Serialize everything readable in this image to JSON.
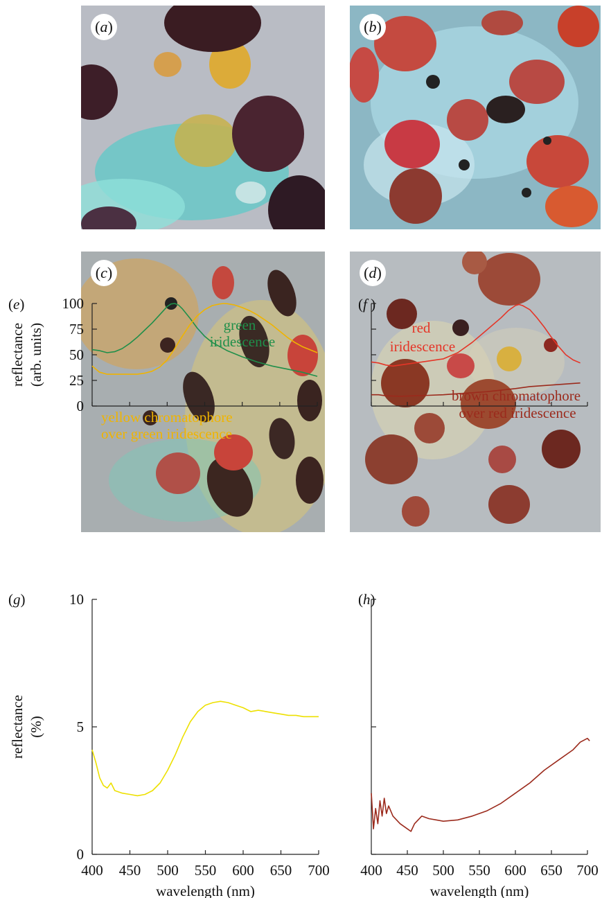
{
  "photos": [
    {
      "id": "a",
      "label": "a",
      "bg": "#b9bcc4",
      "accent": "#3ec6c2"
    },
    {
      "id": "b",
      "label": "b",
      "bg": "#8cb7c4",
      "accent": "#c44a40"
    },
    {
      "id": "c",
      "label": "c",
      "bg": "#a8aeb0",
      "accent": "#e0b040"
    },
    {
      "id": "d",
      "label": "d",
      "bg": "#b7bcc0",
      "accent": "#9c4a38"
    }
  ],
  "colors": {
    "green": "#1f8f4a",
    "yellow_orange": "#f0b400",
    "yellow": "#ede000",
    "red": "#e53527",
    "brown": "#9b2a1c"
  },
  "chart_data": [
    {
      "panel": "e",
      "type": "line",
      "ylabel": [
        "reflectance",
        "(arb. units)"
      ],
      "xlim": [
        400,
        700
      ],
      "ylim": [
        0,
        100
      ],
      "yticks": [
        0,
        25,
        50,
        75,
        100
      ],
      "xticks_labeled": false,
      "series": [
        {
          "color": "#1f8f4a",
          "points": [
            [
              400,
              55
            ],
            [
              410,
              54
            ],
            [
              420,
              52
            ],
            [
              430,
              53
            ],
            [
              440,
              56
            ],
            [
              450,
              61
            ],
            [
              460,
              67
            ],
            [
              470,
              74
            ],
            [
              480,
              81
            ],
            [
              490,
              89
            ],
            [
              500,
              97
            ],
            [
              505,
              99.5
            ],
            [
              510,
              100
            ],
            [
              515,
              98.5
            ],
            [
              520,
              95
            ],
            [
              530,
              86
            ],
            [
              540,
              76
            ],
            [
              550,
              68
            ],
            [
              560,
              62
            ],
            [
              570,
              58
            ],
            [
              580,
              54
            ],
            [
              590,
              51
            ],
            [
              600,
              48
            ],
            [
              620,
              43
            ],
            [
              640,
              39
            ],
            [
              660,
              36
            ],
            [
              680,
              33
            ],
            [
              700,
              29
            ]
          ]
        },
        {
          "color": "#f0b400",
          "points": [
            [
              400,
              39
            ],
            [
              405,
              36
            ],
            [
              410,
              33
            ],
            [
              420,
              31
            ],
            [
              440,
              31
            ],
            [
              460,
              31
            ],
            [
              470,
              32
            ],
            [
              480,
              34
            ],
            [
              490,
              38
            ],
            [
              500,
              45
            ],
            [
              510,
              56
            ],
            [
              520,
              68
            ],
            [
              530,
              79
            ],
            [
              540,
              88
            ],
            [
              550,
              94
            ],
            [
              560,
              98
            ],
            [
              570,
              99.5
            ],
            [
              575,
              100
            ],
            [
              580,
              99.8
            ],
            [
              590,
              98.5
            ],
            [
              600,
              96
            ],
            [
              610,
              93
            ],
            [
              620,
              89
            ],
            [
              630,
              84
            ],
            [
              640,
              79
            ],
            [
              650,
              73
            ],
            [
              660,
              67
            ],
            [
              670,
              62
            ],
            [
              680,
              58
            ],
            [
              690,
              55
            ],
            [
              700,
              52
            ]
          ]
        }
      ],
      "annotations": [
        {
          "text": "green",
          "color": "#1f8f4a"
        },
        {
          "text": "iridescence",
          "color": "#1f8f4a"
        },
        {
          "text": "yellow chromatophore",
          "color": "#f0b400"
        },
        {
          "text": "over green iridescence",
          "color": "#f0b400"
        }
      ]
    },
    {
      "panel": "f",
      "type": "line",
      "xlim": [
        400,
        700
      ],
      "ylim": [
        0,
        100
      ],
      "yticks": [
        0,
        25,
        50,
        75,
        100
      ],
      "yticks_labeled": false,
      "xticks_labeled": false,
      "series": [
        {
          "color": "#e53527",
          "points": [
            [
              400,
              43
            ],
            [
              410,
              42
            ],
            [
              420,
              40
            ],
            [
              430,
              39
            ],
            [
              440,
              40
            ],
            [
              450,
              41
            ],
            [
              460,
              42
            ],
            [
              470,
              43
            ],
            [
              480,
              44
            ],
            [
              500,
              46
            ],
            [
              520,
              52
            ],
            [
              540,
              62
            ],
            [
              560,
              74
            ],
            [
              580,
              86
            ],
            [
              590,
              93
            ],
            [
              600,
              98
            ],
            [
              605,
              99
            ],
            [
              610,
              98
            ],
            [
              620,
              94
            ],
            [
              630,
              86
            ],
            [
              640,
              77
            ],
            [
              650,
              67
            ],
            [
              660,
              58
            ],
            [
              670,
              50
            ],
            [
              680,
              45
            ],
            [
              690,
              42
            ]
          ]
        },
        {
          "color": "#9b2a1c",
          "points": [
            [
              400,
              11
            ],
            [
              410,
              11
            ],
            [
              420,
              10
            ],
            [
              440,
              9.5
            ],
            [
              460,
              10
            ],
            [
              480,
              10.5
            ],
            [
              500,
              11
            ],
            [
              520,
              12
            ],
            [
              540,
              13
            ],
            [
              560,
              14
            ],
            [
              580,
              15.5
            ],
            [
              600,
              17
            ],
            [
              620,
              19
            ],
            [
              640,
              20
            ],
            [
              660,
              21
            ],
            [
              680,
              22
            ],
            [
              690,
              22.5
            ]
          ]
        }
      ],
      "annotations": [
        {
          "text": "red",
          "color": "#e53527"
        },
        {
          "text": "iridescence",
          "color": "#e53527"
        },
        {
          "text": "brown chromatophore",
          "color": "#9b2a1c"
        },
        {
          "text": "over red iridescence",
          "color": "#9b2a1c"
        }
      ]
    },
    {
      "panel": "g",
      "type": "line",
      "ylabel": [
        "reflectance",
        "(%)"
      ],
      "xlabel": "wavelength (nm)",
      "xlim": [
        400,
        700
      ],
      "ylim": [
        0,
        10
      ],
      "yticks": [
        0,
        5,
        10
      ],
      "xticks": [
        400,
        450,
        500,
        550,
        600,
        650,
        700
      ],
      "series": [
        {
          "color": "#ede000",
          "points": [
            [
              400,
              4.1
            ],
            [
              405,
              3.6
            ],
            [
              410,
              3.0
            ],
            [
              415,
              2.7
            ],
            [
              420,
              2.6
            ],
            [
              425,
              2.8
            ],
            [
              430,
              2.5
            ],
            [
              440,
              2.4
            ],
            [
              450,
              2.35
            ],
            [
              460,
              2.3
            ],
            [
              470,
              2.35
            ],
            [
              480,
              2.5
            ],
            [
              490,
              2.8
            ],
            [
              500,
              3.3
            ],
            [
              510,
              3.9
            ],
            [
              520,
              4.6
            ],
            [
              530,
              5.2
            ],
            [
              540,
              5.6
            ],
            [
              550,
              5.85
            ],
            [
              560,
              5.95
            ],
            [
              570,
              6.0
            ],
            [
              580,
              5.95
            ],
            [
              590,
              5.85
            ],
            [
              600,
              5.75
            ],
            [
              610,
              5.6
            ],
            [
              620,
              5.65
            ],
            [
              630,
              5.6
            ],
            [
              640,
              5.55
            ],
            [
              650,
              5.5
            ],
            [
              660,
              5.45
            ],
            [
              670,
              5.45
            ],
            [
              680,
              5.4
            ],
            [
              690,
              5.4
            ],
            [
              700,
              5.4
            ]
          ]
        }
      ]
    },
    {
      "panel": "h",
      "type": "line",
      "xlabel": "wavelength (nm)",
      "xlim": [
        400,
        700
      ],
      "ylim": [
        0,
        10
      ],
      "yticks": [
        0,
        5,
        10
      ],
      "yticks_labeled": false,
      "xticks": [
        400,
        450,
        500,
        550,
        600,
        650,
        700
      ],
      "series": [
        {
          "color": "#9b2a1c",
          "points": [
            [
              400,
              2.4
            ],
            [
              403,
              1.0
            ],
            [
              406,
              1.8
            ],
            [
              409,
              1.2
            ],
            [
              412,
              2.1
            ],
            [
              415,
              1.5
            ],
            [
              418,
              2.2
            ],
            [
              421,
              1.6
            ],
            [
              424,
              1.9
            ],
            [
              430,
              1.5
            ],
            [
              440,
              1.2
            ],
            [
              450,
              1.0
            ],
            [
              455,
              0.9
            ],
            [
              460,
              1.2
            ],
            [
              470,
              1.5
            ],
            [
              480,
              1.4
            ],
            [
              490,
              1.35
            ],
            [
              500,
              1.3
            ],
            [
              520,
              1.35
            ],
            [
              540,
              1.5
            ],
            [
              560,
              1.7
            ],
            [
              580,
              2.0
            ],
            [
              600,
              2.4
            ],
            [
              620,
              2.8
            ],
            [
              640,
              3.3
            ],
            [
              660,
              3.7
            ],
            [
              680,
              4.1
            ],
            [
              690,
              4.4
            ],
            [
              700,
              4.55
            ],
            [
              703,
              4.45
            ]
          ]
        }
      ]
    }
  ]
}
